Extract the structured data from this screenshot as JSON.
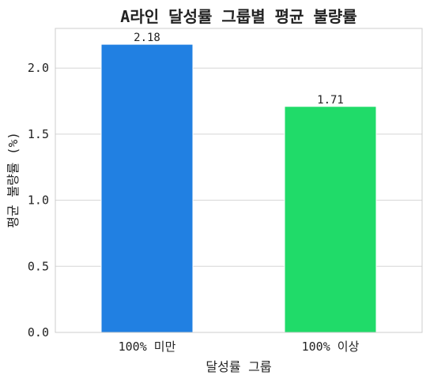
{
  "chart_data": {
    "type": "bar",
    "title": "A라인 달성률 그룹별 평균 불량률",
    "xlabel": "달성률 그룹",
    "ylabel": "평균 불량률 (%)",
    "categories": [
      "100% 미만",
      "100% 이상"
    ],
    "values": [
      2.18,
      1.71
    ],
    "data_labels": [
      "2.18",
      "1.71"
    ],
    "colors": [
      "#2180e2",
      "#20db69"
    ],
    "ylim": [
      0,
      2.3
    ],
    "yticks": [
      "0.0",
      "0.5",
      "1.0",
      "1.5",
      "2.0"
    ],
    "grid": true,
    "legend": "none"
  }
}
